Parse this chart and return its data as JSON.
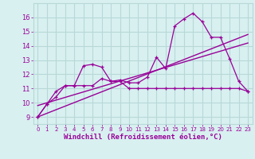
{
  "xlabel": "Windchill (Refroidissement éolien,°C)",
  "x": [
    0,
    1,
    2,
    3,
    4,
    5,
    6,
    7,
    8,
    9,
    10,
    11,
    12,
    13,
    14,
    15,
    16,
    17,
    18,
    19,
    20,
    21,
    22,
    23
  ],
  "line1": [
    9.0,
    9.9,
    10.8,
    11.2,
    11.2,
    12.6,
    12.7,
    12.5,
    11.5,
    11.6,
    11.4,
    11.4,
    11.8,
    13.2,
    12.4,
    15.4,
    15.9,
    16.3,
    15.7,
    14.6,
    14.6,
    13.1,
    11.5,
    10.8
  ],
  "line2": [
    9.0,
    9.9,
    10.4,
    11.2,
    11.2,
    11.2,
    11.2,
    11.7,
    11.5,
    11.5,
    11.0,
    11.0,
    11.0,
    11.0,
    11.0,
    11.0,
    11.0,
    11.0,
    11.0,
    11.0,
    11.0,
    11.0,
    11.0,
    10.8
  ],
  "line3_x": [
    0,
    23
  ],
  "line3_y": [
    9.0,
    14.8
  ],
  "line4_x": [
    0,
    23
  ],
  "line4_y": [
    9.8,
    14.2
  ],
  "color": "#990099",
  "bg_color": "#d8f0f0",
  "grid_color": "#b8d8d8",
  "ylim": [
    8.5,
    17.0
  ],
  "yticks": [
    9,
    10,
    11,
    12,
    13,
    14,
    15,
    16
  ],
  "xlim": [
    -0.5,
    23.5
  ],
  "xticks": [
    0,
    1,
    2,
    3,
    4,
    5,
    6,
    7,
    8,
    9,
    10,
    11,
    12,
    13,
    14,
    15,
    16,
    17,
    18,
    19,
    20,
    21,
    22,
    23
  ]
}
